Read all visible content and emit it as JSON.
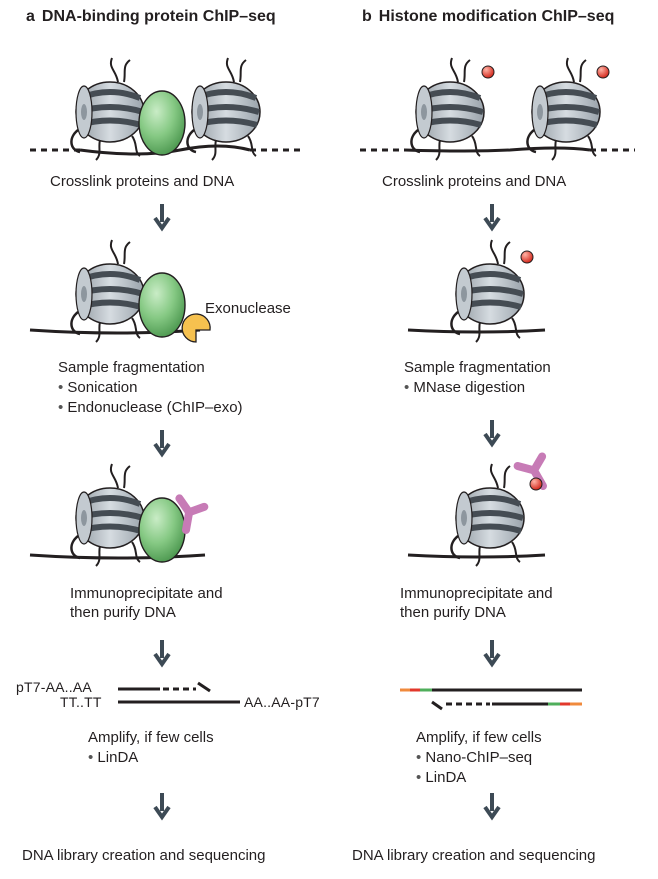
{
  "panel_a": {
    "letter": "a",
    "title": "DNA-binding protein ChIP–seq",
    "step1": "Crosslink proteins and DNA",
    "exonuclease_label": "Exonuclease",
    "step2_title": "Sample fragmentation",
    "step2_items": [
      "Sonication",
      "Endonuclease (ChIP–exo)"
    ],
    "step3_line1": "Immunoprecipitate and",
    "step3_line2": "then purify DNA",
    "seq_top_left": "pT7-AA..AA",
    "seq_bottom_left": "TT..TT",
    "seq_bottom_right": "AA..AA-pT7",
    "step4_title": "Amplify, if few cells",
    "step4_items": [
      "LinDA"
    ],
    "step5": "DNA library creation and sequencing"
  },
  "panel_b": {
    "letter": "b",
    "title": "Histone modification ChIP–seq",
    "step1": "Crosslink proteins and DNA",
    "step2_title": "Sample fragmentation",
    "step2_items": [
      "MNase digestion"
    ],
    "step3_line1": "Immunoprecipitate and",
    "step3_line2": "then purify DNA",
    "step4_title": "Amplify, if few cells",
    "step4_items": [
      "Nano-ChIP–seq",
      "LinDA"
    ],
    "step5": "DNA library creation and sequencing"
  },
  "colors": {
    "text": "#231f20",
    "arrow": "#3d4a55",
    "dna": "#231f20",
    "histone_body": "#b3bcc4",
    "histone_band": "#454c53",
    "protein": "#7fc47e",
    "exonuclease": "#f6c14f",
    "antibody": "#c77bb6",
    "modification": "#e2382b",
    "adapter_orange": "#f08a3c",
    "adapter_red": "#e2382b",
    "adapter_green": "#4fae5b"
  }
}
